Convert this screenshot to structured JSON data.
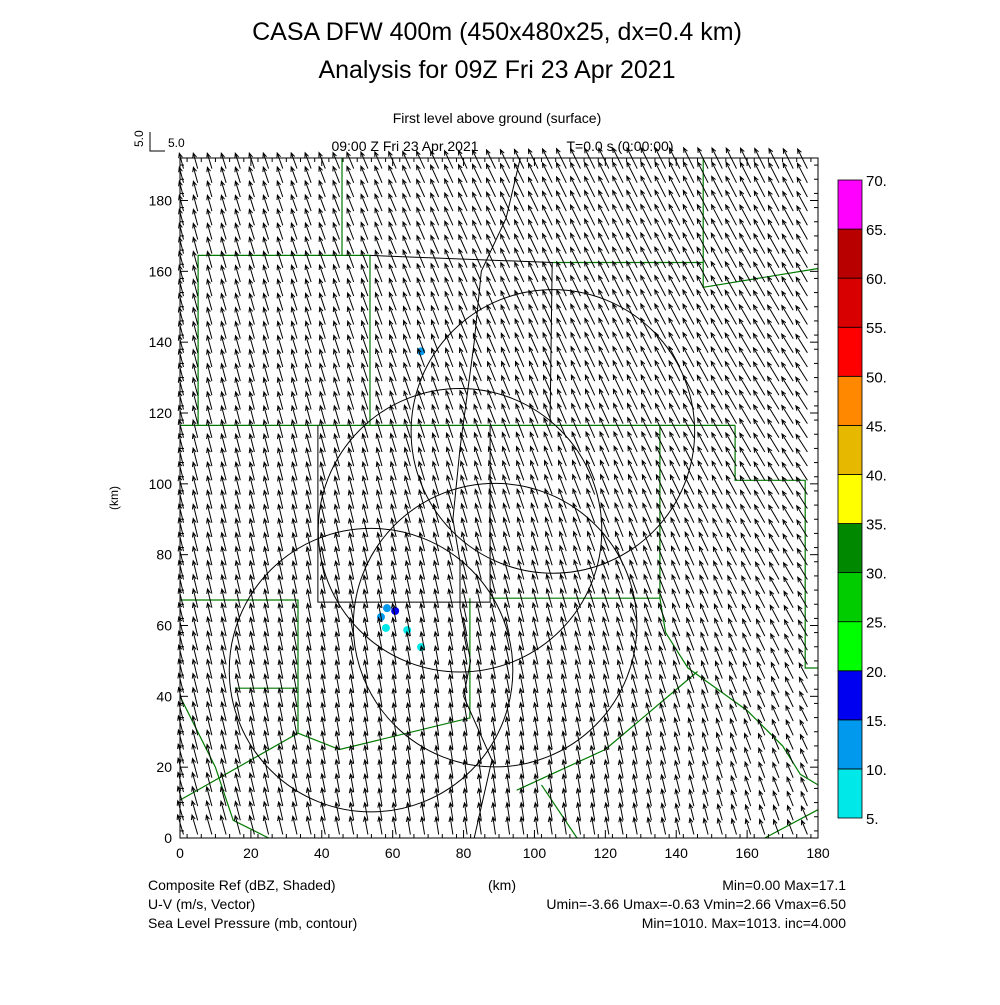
{
  "chart_data": {
    "type": "vector-contour-map",
    "title_line1": "CASA DFW 400m (450x480x25, dx=0.4 km)",
    "title_line2": "Analysis for 09Z Fri 23 Apr 2021",
    "subtitle_level": "First level above ground (surface)",
    "subtitle_time": "09:00 Z Fri 23 Apr 2021",
    "subtitle_t": "T=0.0 s (0:00:00)",
    "ref_vector_value": "5.0",
    "ref_vector_label": "5.0",
    "xlabel": "(km)",
    "ylabel": "(km)",
    "xlim": [
      0,
      180
    ],
    "ylim": [
      0,
      192
    ],
    "xticks": [
      "0",
      "20",
      "40",
      "60",
      "80",
      "100",
      "120",
      "140",
      "160",
      "180"
    ],
    "yticks": [
      "0",
      "20",
      "40",
      "60",
      "80",
      "100",
      "120",
      "140",
      "160",
      "180"
    ],
    "colorbar": {
      "levels": [
        "5.",
        "10.",
        "15.",
        "20.",
        "25.",
        "30.",
        "35.",
        "40.",
        "45.",
        "50.",
        "55.",
        "60.",
        "65.",
        "70."
      ],
      "colors": [
        "#00e8e8",
        "#0099ee",
        "#0000f0",
        "#00ff00",
        "#00cc00",
        "#008800",
        "#ffff00",
        "#e6b800",
        "#ff8800",
        "#ff0000",
        "#d80000",
        "#b80000",
        "#ff00ff"
      ]
    },
    "legend": [
      {
        "label": "Composite Ref (dBZ, Shaded)",
        "stats": "Min=0.00 Max=17.1"
      },
      {
        "label": "U-V (m/s, Vector)",
        "stats": "Umin=-3.66 Umax=-0.63 Vmin=2.66 Vmax=6.50"
      },
      {
        "label": "Sea Level Pressure (mb, contour)",
        "stats": "Min=1010. Max=1013. inc=4.000"
      }
    ],
    "wind": {
      "grid_spacing_km": 4,
      "umin": -3.66,
      "umax": -0.63,
      "vmin": 2.66,
      "vmax": 6.5
    },
    "reflectivity_echoes": [
      {
        "x": 68.0,
        "y": 137.4,
        "dbz": 12
      },
      {
        "x": 58.4,
        "y": 64.9,
        "dbz": 12
      },
      {
        "x": 60.7,
        "y": 64.1,
        "dbz": 17
      },
      {
        "x": 56.7,
        "y": 62.4,
        "dbz": 10
      },
      {
        "x": 58.1,
        "y": 59.3,
        "dbz": 8
      },
      {
        "x": 64.1,
        "y": 58.7,
        "dbz": 8
      },
      {
        "x": 68.0,
        "y": 53.9,
        "dbz": 6
      }
    ],
    "range_rings": [
      {
        "x": 105.2,
        "y": 114.8,
        "r": 40
      },
      {
        "x": 79.0,
        "y": 86.9,
        "r": 40
      },
      {
        "x": 88.9,
        "y": 60.1,
        "r": 40
      },
      {
        "x": 53.9,
        "y": 47.4,
        "r": 40
      }
    ],
    "pressure_contour": [
      [
        96,
        192
      ],
      [
        92,
        175
      ],
      [
        85,
        160
      ],
      [
        83,
        140
      ],
      [
        79,
        110
      ],
      [
        77,
        90
      ],
      [
        79,
        78
      ],
      [
        79,
        65
      ],
      [
        82,
        50
      ],
      [
        80,
        40
      ],
      [
        88,
        22
      ],
      [
        83,
        0
      ]
    ],
    "boundaries_green": [
      [
        [
          45.7,
          192
        ],
        [
          45.7,
          164.5
        ]
      ],
      [
        [
          5.1,
          116.5
        ],
        [
          5.1,
          164.5
        ],
        [
          53.6,
          164.5
        ]
      ],
      [
        [
          0,
          116.5
        ],
        [
          156.6,
          116.5
        ]
      ],
      [
        [
          147.6,
          192
        ],
        [
          147.6,
          155.5
        ],
        [
          180,
          160.8
        ]
      ],
      [
        [
          156.6,
          116.5
        ],
        [
          156.6,
          101
        ],
        [
          176.4,
          101
        ],
        [
          176.4,
          48
        ],
        [
          180,
          48
        ]
      ],
      [
        [
          0,
          67.2
        ],
        [
          33.3,
          67.2
        ],
        [
          33.3,
          29.6
        ],
        [
          0,
          10.7
        ]
      ],
      [
        [
          15.5,
          42.3
        ],
        [
          33.3,
          42.3
        ]
      ],
      [
        [
          53.6,
          164.5
        ],
        [
          53.6,
          116.5
        ]
      ],
      [
        [
          87.5,
          67.7
        ],
        [
          135.4,
          67.7
        ],
        [
          135.4,
          116.5
        ]
      ],
      [
        [
          33.3,
          29.6
        ],
        [
          45,
          25
        ],
        [
          81.8,
          33.9
        ],
        [
          81.8,
          67.7
        ]
      ],
      [
        [
          135.4,
          67.7
        ],
        [
          137,
          58
        ],
        [
          143.3,
          48
        ],
        [
          160,
          36
        ],
        [
          170,
          26
        ],
        [
          175,
          18
        ],
        [
          180,
          15
        ]
      ],
      [
        [
          95,
          13.5
        ],
        [
          120,
          25
        ],
        [
          146,
          47
        ]
      ],
      [
        [
          102,
          15
        ],
        [
          112,
          0
        ]
      ],
      [
        [
          165,
          0
        ],
        [
          180,
          8
        ]
      ],
      [
        [
          0,
          40
        ],
        [
          10,
          20
        ],
        [
          15,
          5
        ],
        [
          25,
          0
        ]
      ],
      [
        [
          105,
          162.5
        ],
        [
          147.6,
          162.5
        ]
      ]
    ],
    "boundaries_black": [
      [
        [
          53.6,
          164.5
        ],
        [
          105,
          162.5
        ],
        [
          104.4,
          116.5
        ]
      ],
      [
        [
          38.9,
          116.5
        ],
        [
          38.9,
          66.6
        ],
        [
          87.5,
          66.6
        ],
        [
          87.5,
          116.5
        ]
      ]
    ]
  }
}
